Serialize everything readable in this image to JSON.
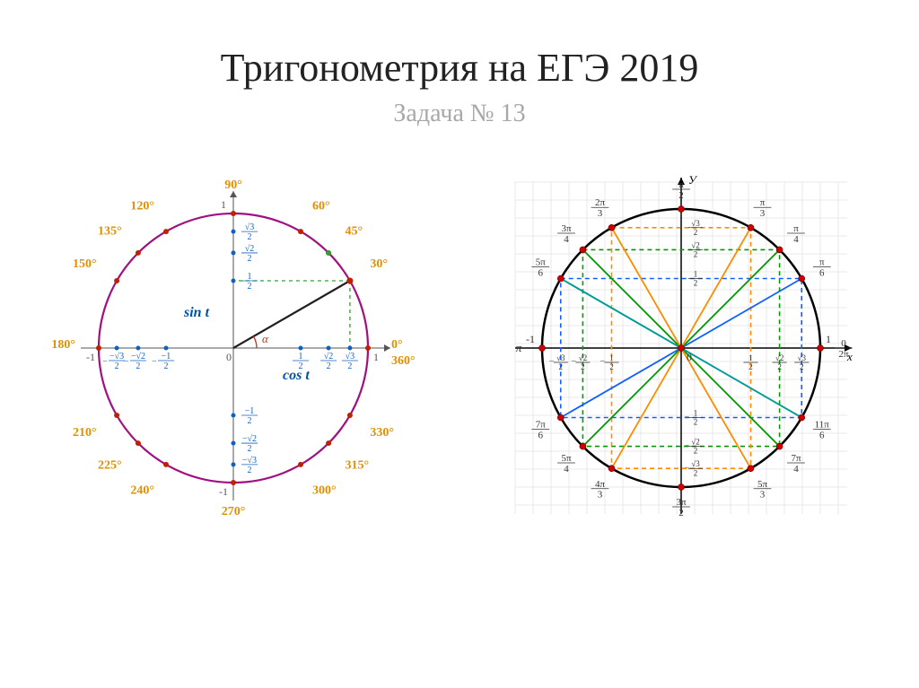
{
  "title": "Тригонометрия на ЕГЭ 2019",
  "subtitle": "Задача № 13",
  "colors": {
    "background": "#ffffff",
    "titleText": "#222222",
    "subtitleText": "#a8a8a8",
    "leftCircle": "#a01080",
    "leftAxis": "#555555",
    "leftDot": "#c02000",
    "leftRadius": "#202020",
    "leftDashed": "#30a030",
    "leftAngleLabel": "#e09000",
    "leftValueLabel": "#1060c0",
    "leftSinCos": "#0050a0",
    "leftAlphaArc": "#c03020",
    "rightCircle": "#000000",
    "rightGrid": "#e0e0e0",
    "rightAxis": "#000000",
    "rightDashOrange": "#ff8c00",
    "rightDashGreen": "#009900",
    "rightDashBlue": "#1060ff",
    "rightDiagOrange": "#ff8c00",
    "rightDiagGreen": "#008800",
    "rightDiagBlue": "#2040d0",
    "rightDiagTeal": "#00a090",
    "rightDot": "#d00000",
    "rightLabel": "#333333"
  },
  "leftDiagram": {
    "radius": 150,
    "angles": [
      {
        "deg": 0,
        "label": "0°",
        "label2": "360°"
      },
      {
        "deg": 30,
        "label": "30°"
      },
      {
        "deg": 45,
        "label": "45°"
      },
      {
        "deg": 60,
        "label": "60°"
      },
      {
        "deg": 90,
        "label": "90°"
      },
      {
        "deg": 120,
        "label": "120°"
      },
      {
        "deg": 135,
        "label": "135°"
      },
      {
        "deg": 150,
        "label": "150°"
      },
      {
        "deg": 180,
        "label": "180°"
      },
      {
        "deg": 210,
        "label": "210°"
      },
      {
        "deg": 225,
        "label": "225°"
      },
      {
        "deg": 240,
        "label": "240°"
      },
      {
        "deg": 270,
        "label": "270°"
      },
      {
        "deg": 300,
        "label": "300°"
      },
      {
        "deg": 315,
        "label": "315°"
      },
      {
        "deg": 330,
        "label": "330°"
      }
    ],
    "axisValues": [
      "½",
      "√2/2",
      "√3/2"
    ],
    "sinLabel": "sin t",
    "cosLabel": "cos t",
    "alphaLabel": "α",
    "axisEndLabels": {
      "posX": "1",
      "negX": "-1",
      "posY": "1",
      "negY": "-1",
      "origin": "0"
    }
  },
  "rightDiagram": {
    "radius": 155,
    "gridSpacing": 20,
    "angles": [
      {
        "deg": 0,
        "labelTop": "0",
        "labelBot": "2π"
      },
      {
        "deg": 30,
        "labelTop": "π",
        "labelBot": "6"
      },
      {
        "deg": 45,
        "labelTop": "π",
        "labelBot": "4"
      },
      {
        "deg": 60,
        "labelTop": "π",
        "labelBot": "3"
      },
      {
        "deg": 90,
        "labelTop": "π",
        "labelBot": "2"
      },
      {
        "deg": 120,
        "labelTop": "2π",
        "labelBot": "3"
      },
      {
        "deg": 135,
        "labelTop": "3π",
        "labelBot": "4"
      },
      {
        "deg": 150,
        "labelTop": "5π",
        "labelBot": "6"
      },
      {
        "deg": 180,
        "labelTop": "π",
        "labelBot": ""
      },
      {
        "deg": 210,
        "labelTop": "7π",
        "labelBot": "6"
      },
      {
        "deg": 225,
        "labelTop": "5π",
        "labelBot": "4"
      },
      {
        "deg": 240,
        "labelTop": "4π",
        "labelBot": "3"
      },
      {
        "deg": 270,
        "labelTop": "3π",
        "labelBot": "2"
      },
      {
        "deg": 300,
        "labelTop": "5π",
        "labelBot": "3"
      },
      {
        "deg": 315,
        "labelTop": "7π",
        "labelBot": "4"
      },
      {
        "deg": 330,
        "labelTop": "11π",
        "labelBot": "6"
      }
    ],
    "axisLabels": {
      "x": "x",
      "y": "У",
      "origin": "0",
      "one": "1",
      "negOne": "-1"
    },
    "axisFractions": [
      "½",
      "√2/2",
      "√3/2"
    ]
  }
}
